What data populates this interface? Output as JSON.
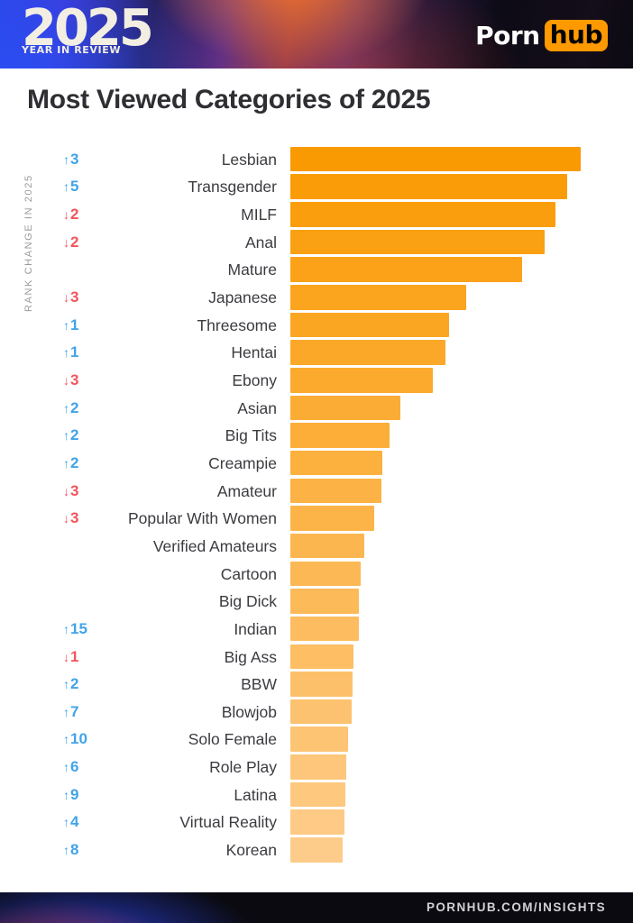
{
  "header": {
    "logo_year": "2025",
    "logo_subtitle": "YEAR IN REVIEW",
    "brand_porn": "Porn",
    "brand_hub": "hub",
    "brand_hub_bg": "#ff9900"
  },
  "title": "Most Viewed Categories of 2025",
  "chart_data": {
    "type": "bar",
    "orientation": "horizontal",
    "title": "Most Viewed Categories of 2025",
    "axis_label": "RANK CHANGE IN 2025",
    "grid": false,
    "legend": null,
    "bar_color_top": "#FA9A03",
    "bar_color_bottom": "#FECC8A",
    "rank_up_color": "#41A3E8",
    "rank_down_color": "#F2545B",
    "categories": [
      "Lesbian",
      "Transgender",
      "MILF",
      "Anal",
      "Mature",
      "Japanese",
      "Threesome",
      "Hentai",
      "Ebony",
      "Asian",
      "Big Tits",
      "Creampie",
      "Amateur",
      "Popular With Women",
      "Verified Amateurs",
      "Cartoon",
      "Big Dick",
      "Indian",
      "Big Ass",
      "BBW",
      "Blowjob",
      "Solo Female",
      "Role Play",
      "Latina",
      "Virtual Reality",
      "Korean"
    ],
    "values_relative": [
      322,
      307,
      294,
      282,
      257,
      195,
      176,
      172,
      158,
      122,
      110,
      102,
      101,
      93,
      82,
      78,
      76,
      76,
      70,
      69,
      68,
      64,
      62,
      61,
      60,
      58
    ],
    "rank_changes": [
      "↑3",
      "↑5",
      "↓2",
      "↓2",
      null,
      "↓3",
      "↑1",
      "↑1",
      "↓3",
      "↑2",
      "↑2",
      "↑2",
      "↓3",
      "↓3",
      null,
      null,
      null,
      "↑15",
      "↓1",
      "↑2",
      "↑7",
      "↑10",
      "↑6",
      "↑9",
      "↑4",
      "↑8"
    ]
  },
  "footer": {
    "url": "PORNHUB.COM/INSIGHTS"
  }
}
